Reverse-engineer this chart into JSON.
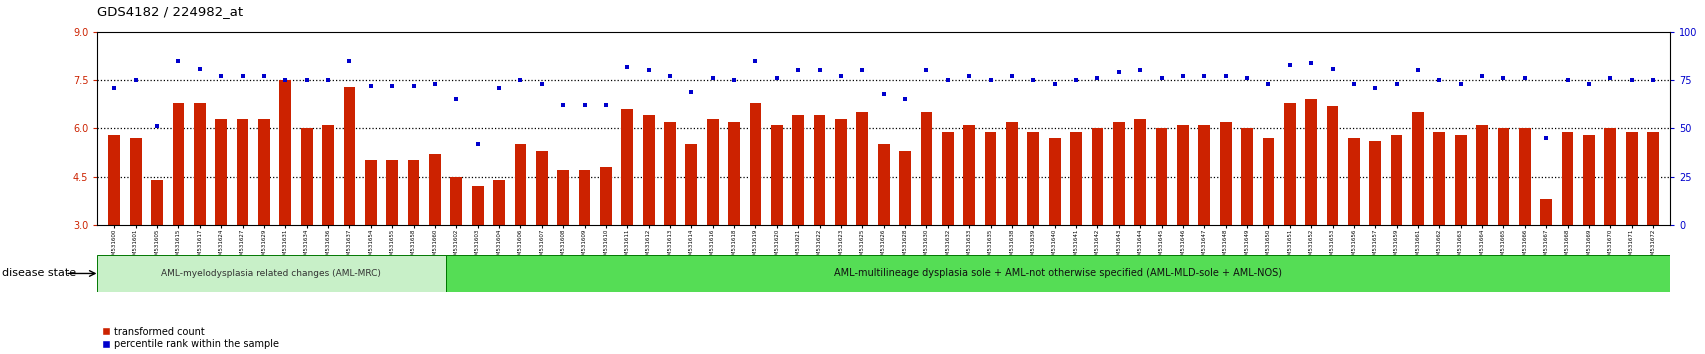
{
  "title": "GDS4182 / 224982_at",
  "samples": [
    "GSM531600",
    "GSM531601",
    "GSM531605",
    "GSM531615",
    "GSM531617",
    "GSM531624",
    "GSM531627",
    "GSM531629",
    "GSM531631",
    "GSM531634",
    "GSM531636",
    "GSM531637",
    "GSM531654",
    "GSM531655",
    "GSM531658",
    "GSM531660",
    "GSM531602",
    "GSM531603",
    "GSM531604",
    "GSM531606",
    "GSM531607",
    "GSM531608",
    "GSM531609",
    "GSM531610",
    "GSM531611",
    "GSM531612",
    "GSM531613",
    "GSM531614",
    "GSM531616",
    "GSM531618",
    "GSM531619",
    "GSM531620",
    "GSM531621",
    "GSM531622",
    "GSM531623",
    "GSM531625",
    "GSM531626",
    "GSM531628",
    "GSM531630",
    "GSM531632",
    "GSM531633",
    "GSM531635",
    "GSM531638",
    "GSM531639",
    "GSM531640",
    "GSM531641",
    "GSM531642",
    "GSM531643",
    "GSM531644",
    "GSM531645",
    "GSM531646",
    "GSM531647",
    "GSM531648",
    "GSM531649",
    "GSM531650",
    "GSM531651",
    "GSM531652",
    "GSM531653",
    "GSM531656",
    "GSM531657",
    "GSM531659",
    "GSM531661",
    "GSM531662",
    "GSM531663",
    "GSM531664",
    "GSM531665",
    "GSM531666",
    "GSM531667",
    "GSM531668",
    "GSM531669",
    "GSM531670",
    "GSM531671",
    "GSM531672"
  ],
  "bar_values": [
    5.8,
    5.7,
    4.4,
    6.8,
    6.8,
    6.3,
    6.3,
    6.3,
    7.5,
    6.0,
    6.1,
    7.3,
    5.0,
    5.0,
    5.0,
    5.2,
    4.5,
    4.2,
    4.4,
    5.5,
    5.3,
    4.7,
    4.7,
    4.8,
    6.6,
    6.4,
    6.2,
    5.5,
    6.3,
    6.2,
    6.8,
    6.1,
    6.4,
    6.4,
    6.3,
    6.5,
    5.5,
    5.3,
    6.5,
    5.9,
    6.1,
    5.9,
    6.2,
    5.9,
    5.7,
    5.9,
    6.0,
    6.2,
    6.3,
    6.0,
    6.1,
    6.1,
    6.2,
    6.0,
    5.7,
    6.8,
    6.9,
    6.7,
    5.7,
    5.6,
    5.8,
    6.5,
    5.9,
    5.8,
    6.1,
    6.0,
    6.0,
    3.8,
    5.9,
    5.8,
    6.0,
    5.9,
    5.9
  ],
  "dot_values_pct": [
    71,
    75,
    51,
    85,
    81,
    77,
    77,
    77,
    75,
    75,
    75,
    85,
    72,
    72,
    72,
    73,
    65,
    42,
    71,
    75,
    73,
    62,
    62,
    62,
    82,
    80,
    77,
    69,
    76,
    75,
    85,
    76,
    80,
    80,
    77,
    80,
    68,
    65,
    80,
    75,
    77,
    75,
    77,
    75,
    73,
    75,
    76,
    79,
    80,
    76,
    77,
    77,
    77,
    76,
    73,
    83,
    84,
    81,
    73,
    71,
    73,
    80,
    75,
    73,
    77,
    76,
    76,
    45,
    75,
    73,
    76,
    75,
    75
  ],
  "group1_count": 16,
  "group1_label": "AML-myelodysplasia related changes (AML-MRC)",
  "group2_label": "AML-multilineage dysplasia sole + AML-not otherwise specified (AML-MLD-sole + AML-NOS)",
  "ylim_left": [
    3,
    9
  ],
  "ylim_right": [
    0,
    100
  ],
  "yticks_left": [
    3,
    4.5,
    6,
    7.5,
    9
  ],
  "yticks_right": [
    0,
    25,
    50,
    75,
    100
  ],
  "dotted_lines": [
    4.5,
    6.0,
    7.5
  ],
  "bar_color": "#cc2200",
  "dot_color": "#0000cc",
  "group1_bg": "#c8f0c8",
  "group2_bg": "#55dd55",
  "disease_state_label": "disease state",
  "legend_bar": "transformed count",
  "legend_dot": "percentile rank within the sample"
}
